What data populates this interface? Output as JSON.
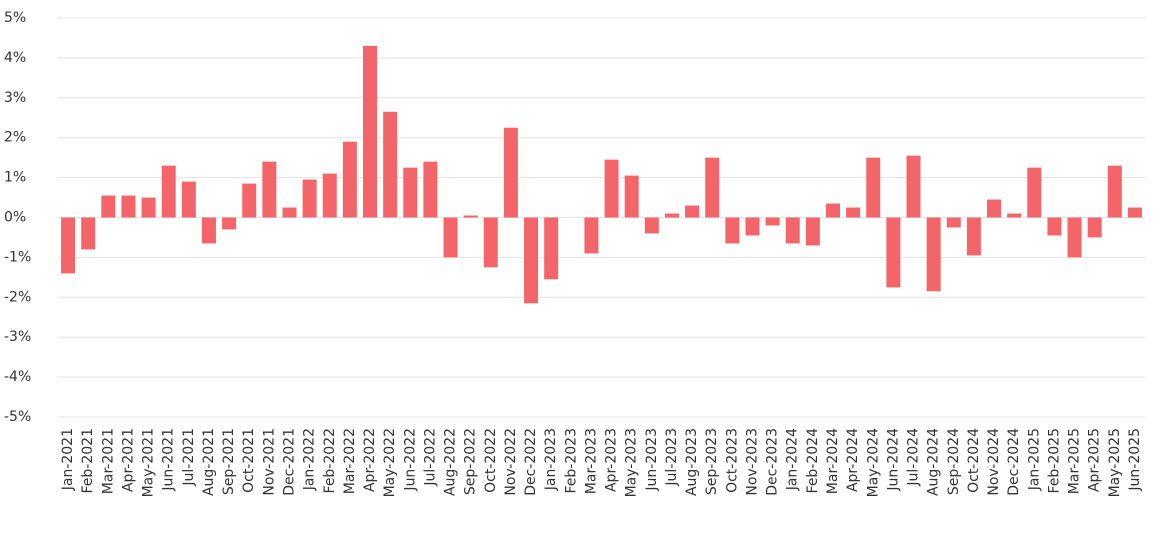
{
  "chart_data": {
    "type": "bar",
    "categories": [
      "Jan-2021",
      "Feb-2021",
      "Mar-2021",
      "Apr-2021",
      "May-2021",
      "Jun-2021",
      "Jul-2021",
      "Aug-2021",
      "Sep-2021",
      "Oct-2021",
      "Nov-2021",
      "Dec-2021",
      "Jan-2022",
      "Feb-2022",
      "Mar-2022",
      "Apr-2022",
      "May-2022",
      "Jun-2022",
      "Jul-2022",
      "Aug-2022",
      "Sep-2022",
      "Oct-2022",
      "Nov-2022",
      "Dec-2022",
      "Jan-2023",
      "Feb-2023",
      "Mar-2023",
      "Apr-2023",
      "May-2023",
      "Jun-2023",
      "Jul-2023",
      "Aug-2023",
      "Sep-2023",
      "Oct-2023",
      "Nov-2023",
      "Dec-2023",
      "Jan-2024",
      "Feb-2024",
      "Mar-2024",
      "Apr-2024",
      "May-2024",
      "Jun-2024",
      "Jul-2024",
      "Aug-2024",
      "Sep-2024",
      "Oct-2024",
      "Nov-2024",
      "Dec-2024",
      "Jan-2025",
      "Feb-2025",
      "Mar-2025",
      "Apr-2025",
      "May-2025",
      "Jun-2025"
    ],
    "values": [
      -1.4,
      -0.8,
      0.55,
      0.55,
      0.5,
      1.3,
      0.9,
      -0.65,
      -0.3,
      0.85,
      1.4,
      0.25,
      0.95,
      1.1,
      1.9,
      4.3,
      2.65,
      1.25,
      1.4,
      -1.0,
      0.05,
      -1.25,
      2.25,
      -2.15,
      -1.55,
      0,
      -0.9,
      1.45,
      1.05,
      -0.4,
      0.1,
      0.3,
      1.5,
      -0.65,
      -0.45,
      -0.2,
      -0.65,
      -0.7,
      0.35,
      0.25,
      1.5,
      -1.75,
      1.55,
      -1.85,
      -0.25,
      -0.95,
      0.45,
      0.1,
      1.25,
      -0.45,
      -1.0,
      -0.5,
      1.3,
      0.25
    ],
    "color": "#f4656a",
    "ylim": [
      -5,
      5
    ],
    "yticks": [
      {
        "value": -5,
        "label": "-5%"
      },
      {
        "value": -4,
        "label": "-4%"
      },
      {
        "value": -3,
        "label": "-3%"
      },
      {
        "value": -2,
        "label": "-2%"
      },
      {
        "value": -1,
        "label": "-1%"
      },
      {
        "value": 0,
        "label": "0%"
      },
      {
        "value": 1,
        "label": "1%"
      },
      {
        "value": 2,
        "label": "2%"
      },
      {
        "value": 3,
        "label": "3%"
      },
      {
        "value": 4,
        "label": "4%"
      },
      {
        "value": 5,
        "label": "5%"
      }
    ],
    "grid": true
  }
}
